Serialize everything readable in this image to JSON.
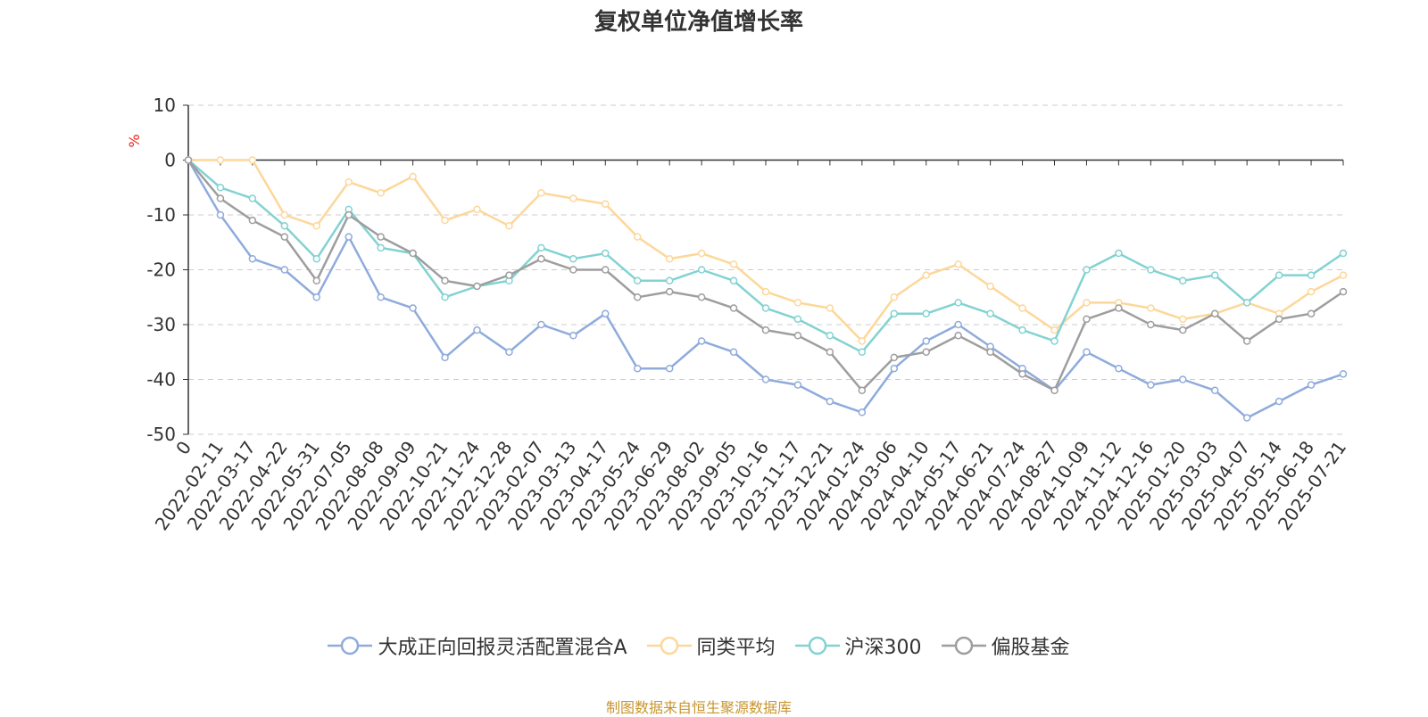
{
  "chart_data": {
    "type": "line",
    "title": "复权单位净值增长率",
    "ylabel": "%",
    "ylim": [
      -50,
      10
    ],
    "yticks": [
      "10",
      "0",
      "-10",
      "-20",
      "-30",
      "-40",
      "-50"
    ],
    "grid": true,
    "legend_position": "bottom",
    "x_labels": [
      "0",
      "2022-02-11",
      "2022-03-17",
      "2022-04-22",
      "2022-05-31",
      "2022-07-05",
      "2022-08-08",
      "2022-09-09",
      "2022-10-21",
      "2022-11-24",
      "2022-12-28",
      "2023-02-07",
      "2023-03-13",
      "2023-04-17",
      "2023-05-24",
      "2023-06-29",
      "2023-08-02",
      "2023-09-05",
      "2023-10-16",
      "2023-11-17",
      "2023-12-21",
      "2024-01-24",
      "2024-03-06",
      "2024-04-10",
      "2024-05-17",
      "2024-06-21",
      "2024-07-24",
      "2024-08-27",
      "2024-10-09",
      "2024-11-12",
      "2024-12-16",
      "2025-01-20",
      "2025-03-03",
      "2025-04-07",
      "2025-05-14",
      "2025-06-18",
      "2025-07-21"
    ],
    "series": [
      {
        "name": "大成正向回报灵活配置混合A",
        "color": "#8fabdc",
        "values": [
          0,
          -10,
          -18,
          -20,
          -25,
          -14,
          -25,
          -27,
          -36,
          -31,
          -35,
          -30,
          -32,
          -28,
          -38,
          -38,
          -33,
          -35,
          -40,
          -41,
          -44,
          -46,
          -38,
          -33,
          -30,
          -34,
          -38,
          -42,
          -35,
          -38,
          -41,
          -40,
          -42,
          -47,
          -44,
          -41,
          -39
        ]
      },
      {
        "name": "同类平均",
        "color": "#fdd79a",
        "values": [
          0,
          0,
          0,
          -10,
          -12,
          -4,
          -6,
          -3,
          -11,
          -9,
          -12,
          -6,
          -7,
          -8,
          -14,
          -18,
          -17,
          -19,
          -24,
          -26,
          -27,
          -33,
          -25,
          -21,
          -19,
          -23,
          -27,
          -31,
          -26,
          -26,
          -27,
          -29,
          -28,
          -26,
          -28,
          -24,
          -21
        ]
      },
      {
        "name": "沪深300",
        "color": "#83d2d2",
        "values": [
          0,
          -5,
          -7,
          -12,
          -18,
          -9,
          -16,
          -17,
          -25,
          -23,
          -22,
          -16,
          -18,
          -17,
          -22,
          -22,
          -20,
          -22,
          -27,
          -29,
          -32,
          -35,
          -28,
          -28,
          -26,
          -28,
          -31,
          -33,
          -20,
          -17,
          -20,
          -22,
          -21,
          -26,
          -21,
          -21,
          -17
        ]
      },
      {
        "name": "偏股基金",
        "color": "#9e9e9e",
        "values": [
          0,
          -7,
          -11,
          -14,
          -22,
          -10,
          -14,
          -17,
          -22,
          -23,
          -21,
          -18,
          -20,
          -20,
          -25,
          -24,
          -25,
          -27,
          -31,
          -32,
          -35,
          -42,
          -36,
          -35,
          -32,
          -35,
          -39,
          -42,
          -29,
          -27,
          -30,
          -31,
          -28,
          -33,
          -29,
          -28,
          -24
        ]
      }
    ]
  },
  "source_note": "制图数据来自恒生聚源数据库"
}
